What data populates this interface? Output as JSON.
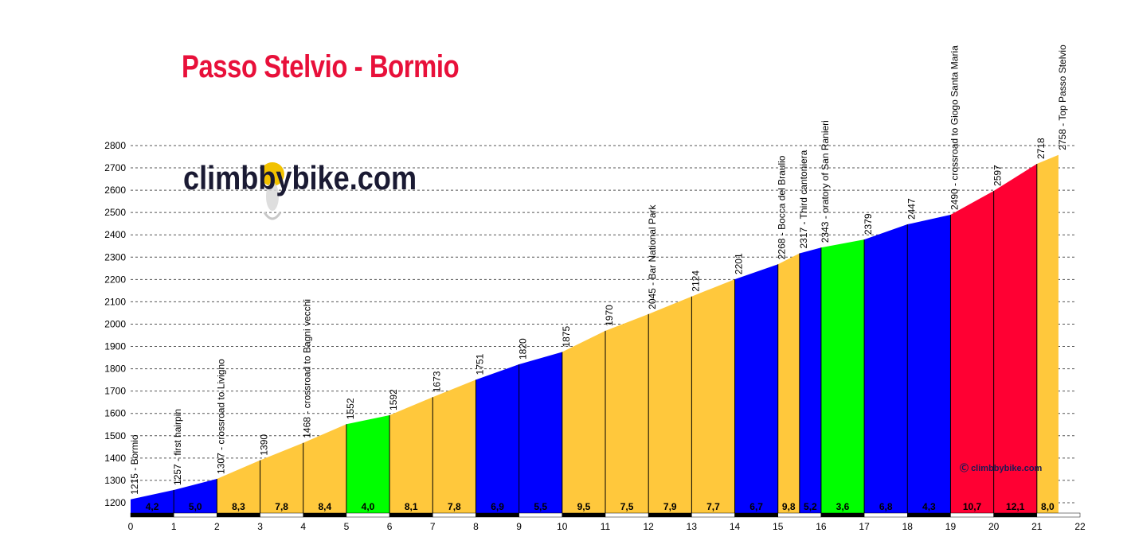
{
  "header": {
    "title": "Passo Stelvio - Bormio",
    "brand": "climbbybike.com",
    "small_brand": "climbbybike.com"
  },
  "chart_data": {
    "type": "area",
    "title": "Passo Stelvio - Bormio",
    "xlabel": "",
    "ylabel": "",
    "xlim": [
      0,
      22
    ],
    "ylim": [
      1150,
      2800
    ],
    "x_ticks": [
      0,
      1,
      2,
      3,
      4,
      5,
      6,
      7,
      8,
      9,
      10,
      11,
      12,
      13,
      14,
      15,
      16,
      17,
      18,
      19,
      20,
      21,
      22
    ],
    "y_ticks": [
      1200,
      1300,
      1400,
      1500,
      1600,
      1700,
      1800,
      1900,
      2000,
      2100,
      2200,
      2300,
      2400,
      2500,
      2600,
      2700,
      2800
    ],
    "grid": "horizontal-dashed",
    "segments": [
      {
        "x0": 0,
        "x1": 1,
        "y0": 1215,
        "y1": 1257,
        "gradient": "4,2",
        "color": "#0000ff"
      },
      {
        "x0": 1,
        "x1": 2,
        "y0": 1257,
        "y1": 1307,
        "gradient": "5,0",
        "color": "#0000ff"
      },
      {
        "x0": 2,
        "x1": 3,
        "y0": 1307,
        "y1": 1390,
        "gradient": "8,3",
        "color": "#ffc83c"
      },
      {
        "x0": 3,
        "x1": 4,
        "y0": 1390,
        "y1": 1468,
        "gradient": "7,8",
        "color": "#ffc83c"
      },
      {
        "x0": 4,
        "x1": 5,
        "y0": 1468,
        "y1": 1552,
        "gradient": "8,4",
        "color": "#ffc83c"
      },
      {
        "x0": 5,
        "x1": 6,
        "y0": 1552,
        "y1": 1592,
        "gradient": "4,0",
        "color": "#00ff00"
      },
      {
        "x0": 6,
        "x1": 7,
        "y0": 1592,
        "y1": 1673,
        "gradient": "8,1",
        "color": "#ffc83c"
      },
      {
        "x0": 7,
        "x1": 8,
        "y0": 1673,
        "y1": 1751,
        "gradient": "7,8",
        "color": "#ffc83c"
      },
      {
        "x0": 8,
        "x1": 9,
        "y0": 1751,
        "y1": 1820,
        "gradient": "6,9",
        "color": "#0000ff"
      },
      {
        "x0": 9,
        "x1": 10,
        "y0": 1820,
        "y1": 1875,
        "gradient": "5,5",
        "color": "#0000ff"
      },
      {
        "x0": 10,
        "x1": 11,
        "y0": 1875,
        "y1": 1970,
        "gradient": "9,5",
        "color": "#ffc83c"
      },
      {
        "x0": 11,
        "x1": 12,
        "y0": 1970,
        "y1": 2045,
        "gradient": "7,5",
        "color": "#ffc83c"
      },
      {
        "x0": 12,
        "x1": 13,
        "y0": 2045,
        "y1": 2124,
        "gradient": "7,9",
        "color": "#ffc83c"
      },
      {
        "x0": 13,
        "x1": 14,
        "y0": 2124,
        "y1": 2201,
        "gradient": "7,7",
        "color": "#ffc83c"
      },
      {
        "x0": 14,
        "x1": 15,
        "y0": 2201,
        "y1": 2268,
        "gradient": "6,7",
        "color": "#0000ff"
      },
      {
        "x0": 15,
        "x1": 15.5,
        "y0": 2268,
        "y1": 2317,
        "gradient": "9,8",
        "color": "#ffc83c"
      },
      {
        "x0": 15.5,
        "x1": 16,
        "y0": 2317,
        "y1": 2343,
        "gradient": "5,2",
        "color": "#0000ff"
      },
      {
        "x0": 16,
        "x1": 17,
        "y0": 2343,
        "y1": 2379,
        "gradient": "3,6",
        "color": "#00ff00"
      },
      {
        "x0": 17,
        "x1": 18,
        "y0": 2379,
        "y1": 2447,
        "gradient": "6,8",
        "color": "#0000ff"
      },
      {
        "x0": 18,
        "x1": 19,
        "y0": 2447,
        "y1": 2490,
        "gradient": "4,3",
        "color": "#0000ff"
      },
      {
        "x0": 19,
        "x1": 20,
        "y0": 2490,
        "y1": 2597,
        "gradient": "10,7",
        "color": "#ff0033"
      },
      {
        "x0": 20,
        "x1": 21,
        "y0": 2597,
        "y1": 2718,
        "gradient": "12,1",
        "color": "#ff0033"
      },
      {
        "x0": 21,
        "x1": 21.5,
        "y0": 2718,
        "y1": 2758,
        "gradient": "8,0",
        "color": "#ffc83c"
      }
    ],
    "annotations": [
      {
        "x": 0,
        "y": 1215,
        "label": "1215 - Bormio"
      },
      {
        "x": 1,
        "y": 1257,
        "label": "1257 - first hairpin"
      },
      {
        "x": 2,
        "y": 1307,
        "label": "1307 - crossroad to Livigno"
      },
      {
        "x": 3,
        "y": 1390,
        "label": "1390"
      },
      {
        "x": 4,
        "y": 1468,
        "label": "1468 - crossroad to Bagni vecchi"
      },
      {
        "x": 5,
        "y": 1552,
        "label": "1552"
      },
      {
        "x": 6,
        "y": 1592,
        "label": "1592"
      },
      {
        "x": 7,
        "y": 1673,
        "label": "1673"
      },
      {
        "x": 8,
        "y": 1751,
        "label": "1751"
      },
      {
        "x": 9,
        "y": 1820,
        "label": "1820"
      },
      {
        "x": 10,
        "y": 1875,
        "label": "1875"
      },
      {
        "x": 11,
        "y": 1970,
        "label": "1970"
      },
      {
        "x": 12,
        "y": 2045,
        "label": "2045 - Bar National Park"
      },
      {
        "x": 13,
        "y": 2124,
        "label": "2124"
      },
      {
        "x": 14,
        "y": 2201,
        "label": "2201"
      },
      {
        "x": 15,
        "y": 2268,
        "label": "2268 - Bocca del Braulio"
      },
      {
        "x": 15.5,
        "y": 2317,
        "label": "2317 - Third cantoniera"
      },
      {
        "x": 16,
        "y": 2343,
        "label": "2343 - oratory of San Ranieri"
      },
      {
        "x": 17,
        "y": 2379,
        "label": "2379"
      },
      {
        "x": 18,
        "y": 2447,
        "label": "2447"
      },
      {
        "x": 19,
        "y": 2490,
        "label": "2490 - crossroad to Giogo Santa Maria"
      },
      {
        "x": 20,
        "y": 2597,
        "label": "2597"
      },
      {
        "x": 21,
        "y": 2718,
        "label": "2718"
      },
      {
        "x": 21.5,
        "y": 2758,
        "label": "2758 - Top Passo Stelvio"
      }
    ],
    "colors": {
      "axis": "#000000",
      "grid": "#555555"
    }
  }
}
